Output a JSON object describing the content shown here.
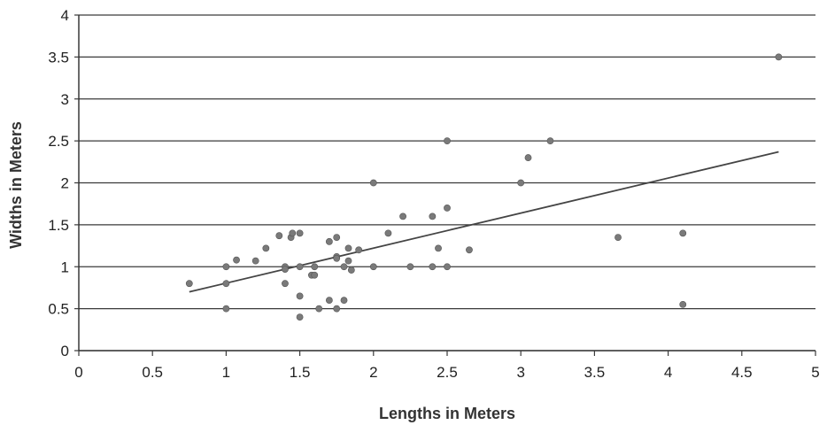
{
  "chart_data": {
    "type": "scatter",
    "title": "",
    "xlabel": "Lengths in Meters",
    "ylabel": "Widths in Meters",
    "xlim": [
      0,
      5
    ],
    "ylim": [
      0,
      4
    ],
    "x_ticks": [
      "0",
      "0.5",
      "1",
      "1.5",
      "2",
      "2.5",
      "3",
      "3.5",
      "4",
      "4.5",
      "5"
    ],
    "y_ticks": [
      "0",
      "0.5",
      "1",
      "1.5",
      "2",
      "2.5",
      "3",
      "3.5",
      "4"
    ],
    "grid": "horizontal",
    "legend": "none",
    "series": [
      {
        "points": [
          [
            0.75,
            0.8
          ],
          [
            1.0,
            1.0
          ],
          [
            1.0,
            0.8
          ],
          [
            1.0,
            0.5
          ],
          [
            1.07,
            1.08
          ],
          [
            1.2,
            1.07
          ],
          [
            1.27,
            1.22
          ],
          [
            1.36,
            1.37
          ],
          [
            1.4,
            1.0
          ],
          [
            1.4,
            0.97
          ],
          [
            1.4,
            0.8
          ],
          [
            1.44,
            1.35
          ],
          [
            1.45,
            1.4
          ],
          [
            1.5,
            1.4
          ],
          [
            1.5,
            1.0
          ],
          [
            1.5,
            0.65
          ],
          [
            1.5,
            0.4
          ],
          [
            1.58,
            0.9
          ],
          [
            1.6,
            1.0
          ],
          [
            1.6,
            0.9
          ],
          [
            1.63,
            0.5
          ],
          [
            1.7,
            1.3
          ],
          [
            1.7,
            0.6
          ],
          [
            1.75,
            1.35
          ],
          [
            1.75,
            1.12
          ],
          [
            1.75,
            1.1
          ],
          [
            1.75,
            0.5
          ],
          [
            1.8,
            1.0
          ],
          [
            1.8,
            0.6
          ],
          [
            1.83,
            1.22
          ],
          [
            1.83,
            1.07
          ],
          [
            1.85,
            0.96
          ],
          [
            1.9,
            1.2
          ],
          [
            2.0,
            2.0
          ],
          [
            2.0,
            1.0
          ],
          [
            2.1,
            1.4
          ],
          [
            2.2,
            1.6
          ],
          [
            2.25,
            1.0
          ],
          [
            2.4,
            1.6
          ],
          [
            2.4,
            1.0
          ],
          [
            2.44,
            1.22
          ],
          [
            2.5,
            2.5
          ],
          [
            2.5,
            1.7
          ],
          [
            2.5,
            1.0
          ],
          [
            2.65,
            1.2
          ],
          [
            3.0,
            2.0
          ],
          [
            3.05,
            2.3
          ],
          [
            3.2,
            2.5
          ],
          [
            3.66,
            1.35
          ],
          [
            4.1,
            1.4
          ],
          [
            4.1,
            0.55
          ],
          [
            4.75,
            3.5
          ]
        ],
        "color": "#7a7a7a"
      }
    ],
    "trendline": {
      "type": "linear",
      "from": [
        0.75,
        0.7
      ],
      "to": [
        4.75,
        2.37
      ],
      "color": "#444444"
    }
  }
}
